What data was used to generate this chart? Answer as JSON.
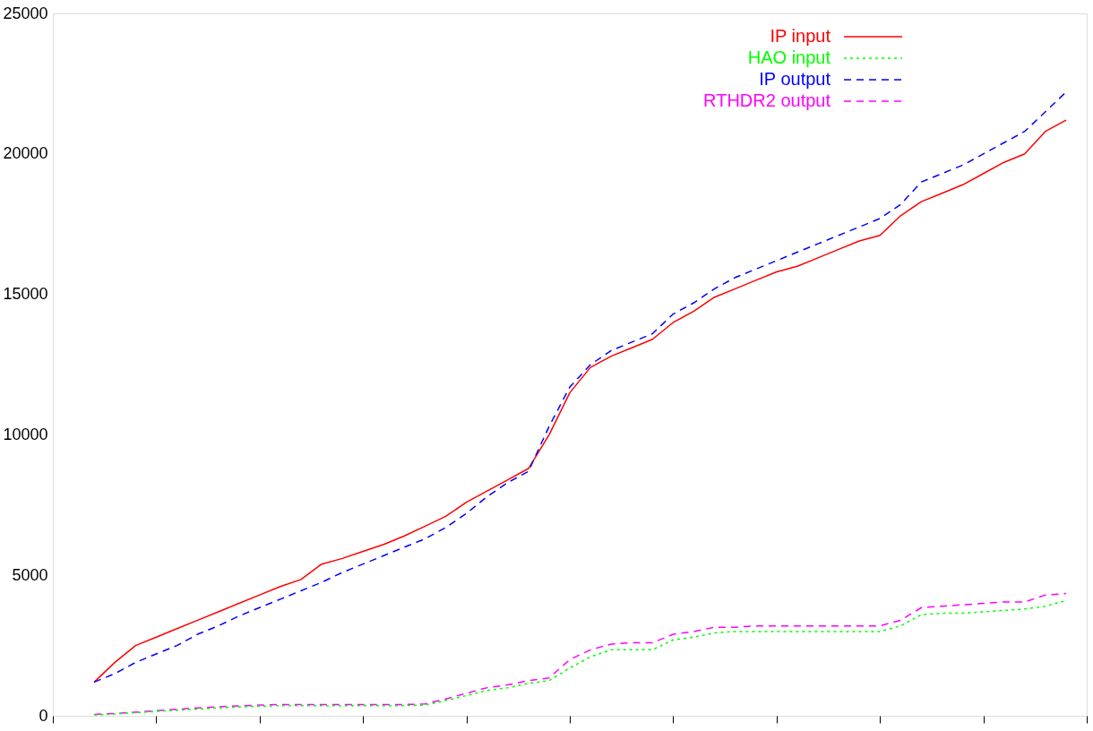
{
  "chart_data": {
    "type": "line",
    "categories": [
      null,
      null,
      null,
      null,
      null,
      null,
      null,
      null,
      null,
      null,
      null,
      null,
      null,
      null,
      null,
      null,
      null,
      null,
      null,
      null,
      null,
      null,
      null,
      null,
      null,
      null,
      null,
      null,
      null,
      null,
      null,
      null,
      null,
      null,
      null,
      null,
      null,
      null,
      null,
      null,
      null,
      null,
      null,
      null,
      null,
      null,
      null,
      null,
      null,
      null,
      null
    ],
    "ylim": [
      0,
      25000
    ],
    "yticks": [
      0,
      5000,
      10000,
      15000,
      20000,
      25000
    ],
    "grid": false,
    "legend": "top right",
    "tick_labels": "y",
    "series": [
      {
        "name": "IP input",
        "color": "#ff0000",
        "line_style": "solid",
        "values": [
          null,
          null,
          1200,
          1900,
          2500,
          2800,
          3100,
          3400,
          3700,
          4000,
          4300,
          4600,
          4850,
          5400,
          5600,
          5850,
          6100,
          6400,
          6750,
          7100,
          7600,
          8000,
          8400,
          8800,
          10000,
          11500,
          12400,
          12800,
          13100,
          13400,
          14000,
          14400,
          14900,
          15200,
          15500,
          15800,
          16000,
          16300,
          16600,
          16900,
          17100,
          17800,
          18300,
          18600,
          18900,
          19300,
          19700,
          20000,
          20800,
          21200,
          null
        ]
      },
      {
        "name": "HAO input",
        "color": "#00ff00",
        "line_style": "dotted",
        "values": [
          null,
          null,
          30,
          60,
          110,
          160,
          200,
          240,
          280,
          310,
          340,
          360,
          360,
          360,
          360,
          360,
          360,
          360,
          380,
          540,
          720,
          900,
          1000,
          1150,
          1250,
          1700,
          2100,
          2350,
          2350,
          2350,
          2700,
          2800,
          2950,
          3000,
          3000,
          3000,
          3000,
          3000,
          3000,
          3000,
          3000,
          3200,
          3600,
          3650,
          3650,
          3700,
          3750,
          3800,
          3900,
          4100,
          null
        ]
      },
      {
        "name": "IP output",
        "color": "#0000ff",
        "line_style": "dashed",
        "values": [
          null,
          null,
          1200,
          1500,
          1900,
          2200,
          2500,
          2900,
          3200,
          3550,
          3850,
          4150,
          4450,
          4750,
          5100,
          5400,
          5700,
          6000,
          6300,
          6700,
          7200,
          7800,
          8300,
          8700,
          10300,
          11700,
          12500,
          13000,
          13300,
          13600,
          14300,
          14700,
          15200,
          15600,
          15900,
          16200,
          16500,
          16800,
          17100,
          17400,
          17700,
          18200,
          19000,
          19300,
          19600,
          20000,
          20400,
          20800,
          21500,
          22200,
          null
        ]
      },
      {
        "name": "RTHDR2 output",
        "color": "#ff00ff",
        "line_style": "dashed",
        "values": [
          null,
          null,
          50,
          80,
          130,
          180,
          230,
          280,
          320,
          350,
          380,
          400,
          400,
          400,
          400,
          400,
          400,
          400,
          420,
          600,
          800,
          1000,
          1100,
          1250,
          1350,
          2000,
          2350,
          2550,
          2600,
          2600,
          2900,
          3000,
          3150,
          3150,
          3200,
          3200,
          3200,
          3200,
          3200,
          3200,
          3200,
          3400,
          3850,
          3900,
          3950,
          4000,
          4050,
          4050,
          4300,
          4350,
          null
        ]
      }
    ]
  }
}
